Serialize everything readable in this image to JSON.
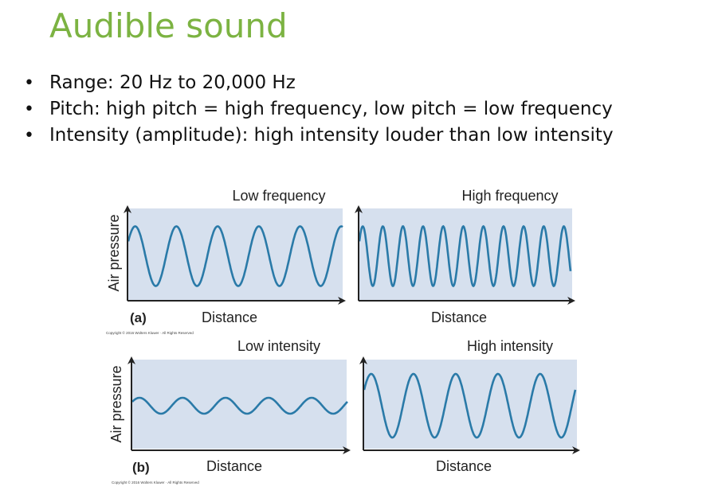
{
  "slide": {
    "title": "Audible sound",
    "bullets": [
      "Range: 20 Hz to 20,000 Hz",
      "Pitch: high pitch = high frequency, low pitch = low frequency",
      "Intensity (amplitude): high intensity louder than low intensity"
    ]
  },
  "figure": {
    "background_color": "#d6e0ee",
    "wave_color": "#2a7aa8",
    "y_axis_label": "Air pressure",
    "x_axis_label": "Distance",
    "copyright": "Copyright © 2016 Wolters Kluwer · All Rights Reserved",
    "rows": [
      {
        "letter": "(a)",
        "panels": [
          {
            "title": "Low frequency",
            "cycles": 5.2,
            "amplitude": 0.75
          },
          {
            "title": "High frequency",
            "cycles": 10.5,
            "amplitude": 0.75
          }
        ]
      },
      {
        "letter": "(b)",
        "panels": [
          {
            "title": "Low intensity",
            "cycles": 5.0,
            "amplitude": 0.2
          },
          {
            "title": "High intensity",
            "cycles": 5.0,
            "amplitude": 0.8
          }
        ]
      }
    ]
  }
}
